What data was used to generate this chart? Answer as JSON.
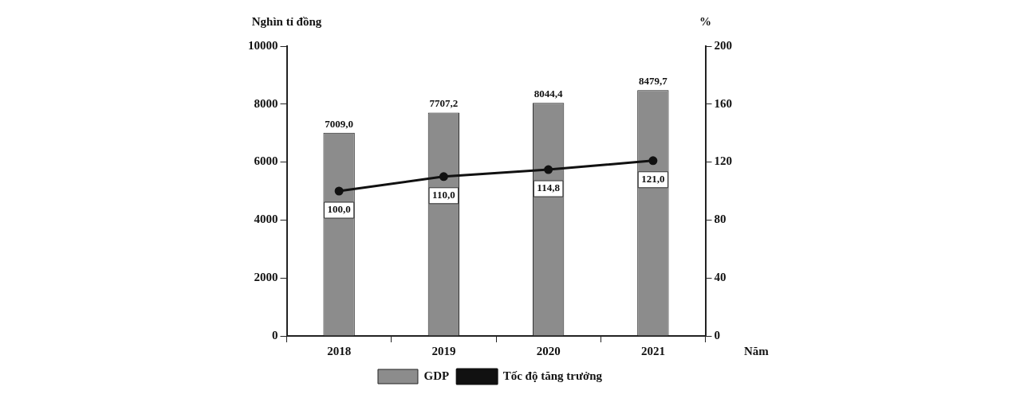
{
  "chart_data": {
    "type": "bar",
    "xlabel": "Năm",
    "ylabel": "Nghìn tỉ đồng",
    "y2label": "%",
    "categories": [
      "2018",
      "2019",
      "2020",
      "2021"
    ],
    "series": [
      {
        "name": "GDP",
        "color": "#8c8c8c",
        "values": [
          7009.0,
          7707.2,
          8044.4,
          8479.7
        ],
        "value_labels": [
          "7009,0",
          "7707,2",
          "8044,4",
          "8479,7"
        ]
      },
      {
        "name": "Tốc độ tăng trưởng",
        "type": "line",
        "axis": "y2",
        "color": "#111111",
        "values": [
          100.0,
          110.0,
          114.8,
          121.0
        ],
        "value_labels": [
          "100,0",
          "110,0",
          "114,8",
          "121,0"
        ],
        "marker": "circle",
        "line_style": "solid"
      }
    ],
    "ylim": [
      0,
      10000
    ],
    "yticks": [
      0,
      2000,
      4000,
      6000,
      8000,
      10000
    ],
    "y2lim": [
      0,
      200
    ],
    "y2ticks": [
      0,
      40,
      80,
      120,
      160,
      200
    ],
    "grid": false,
    "legend": "bottom"
  }
}
